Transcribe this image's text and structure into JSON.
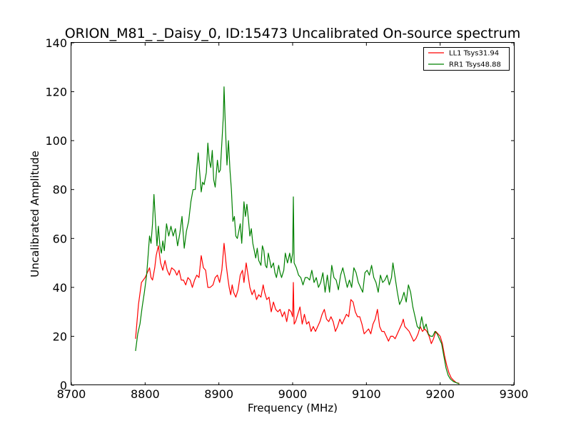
{
  "chart_data": {
    "type": "line",
    "title": "ORION_M81_-_Daisy_0, ID:15473 Uncalibrated On-source spectrum",
    "xlabel": "Frequency (MHz)",
    "ylabel": "Uncalibrated Amplitude",
    "xlim": [
      8700,
      9300
    ],
    "ylim": [
      0,
      140
    ],
    "xticks": [
      8700,
      8800,
      8900,
      9000,
      9100,
      9200,
      9300
    ],
    "yticks": [
      0,
      20,
      40,
      60,
      80,
      100,
      120,
      140
    ],
    "xtick_labels": [
      "8700",
      "8800",
      "8900",
      "9000",
      "9100",
      "9200",
      "9300"
    ],
    "ytick_labels": [
      "0",
      "20",
      "40",
      "60",
      "80",
      "100",
      "120",
      "140"
    ],
    "grid": false,
    "legend_position": "top-right",
    "series": [
      {
        "name": "LL1 Tsys31.94",
        "color": "#ff0000",
        "points": [
          [
            8787,
            19
          ],
          [
            8791,
            33
          ],
          [
            8795,
            42
          ],
          [
            8800,
            44
          ],
          [
            8803,
            46
          ],
          [
            8806,
            48
          ],
          [
            8808,
            44
          ],
          [
            8810,
            43
          ],
          [
            8813,
            48
          ],
          [
            8815,
            53
          ],
          [
            8818,
            57
          ],
          [
            8821,
            50
          ],
          [
            8824,
            47
          ],
          [
            8827,
            51
          ],
          [
            8830,
            47
          ],
          [
            8833,
            45
          ],
          [
            8836,
            48
          ],
          [
            8840,
            47
          ],
          [
            8843,
            45
          ],
          [
            8846,
            47
          ],
          [
            8849,
            43
          ],
          [
            8852,
            43
          ],
          [
            8855,
            41
          ],
          [
            8858,
            44
          ],
          [
            8861,
            43
          ],
          [
            8864,
            40
          ],
          [
            8867,
            43
          ],
          [
            8870,
            45
          ],
          [
            8873,
            44
          ],
          [
            8876,
            53
          ],
          [
            8879,
            48
          ],
          [
            8882,
            47
          ],
          [
            8885,
            40
          ],
          [
            8888,
            40
          ],
          [
            8892,
            41
          ],
          [
            8895,
            44
          ],
          [
            8898,
            45
          ],
          [
            8901,
            42
          ],
          [
            8904,
            47
          ],
          [
            8907,
            58
          ],
          [
            8910,
            49
          ],
          [
            8912,
            44
          ],
          [
            8914,
            40
          ],
          [
            8916,
            37
          ],
          [
            8918,
            41
          ],
          [
            8920,
            38
          ],
          [
            8923,
            36
          ],
          [
            8926,
            39
          ],
          [
            8929,
            45
          ],
          [
            8932,
            47
          ],
          [
            8934,
            42
          ],
          [
            8937,
            50
          ],
          [
            8939,
            46
          ],
          [
            8942,
            40
          ],
          [
            8945,
            37
          ],
          [
            8948,
            39
          ],
          [
            8951,
            35
          ],
          [
            8954,
            37
          ],
          [
            8957,
            36
          ],
          [
            8960,
            41
          ],
          [
            8962,
            38
          ],
          [
            8965,
            35
          ],
          [
            8968,
            36
          ],
          [
            8971,
            30
          ],
          [
            8974,
            34
          ],
          [
            8977,
            31
          ],
          [
            8980,
            30
          ],
          [
            8983,
            31
          ],
          [
            8986,
            28
          ],
          [
            8989,
            30
          ],
          [
            8992,
            26
          ],
          [
            8995,
            31
          ],
          [
            8998,
            30
          ],
          [
            9000,
            28
          ],
          [
            9001,
            42
          ],
          [
            9002,
            25
          ],
          [
            9004,
            26
          ],
          [
            9007,
            29
          ],
          [
            9010,
            32
          ],
          [
            9013,
            25
          ],
          [
            9016,
            29
          ],
          [
            9019,
            25
          ],
          [
            9022,
            26
          ],
          [
            9025,
            22
          ],
          [
            9028,
            24
          ],
          [
            9031,
            22
          ],
          [
            9034,
            24
          ],
          [
            9037,
            26
          ],
          [
            9040,
            29
          ],
          [
            9043,
            31
          ],
          [
            9046,
            27
          ],
          [
            9049,
            26
          ],
          [
            9052,
            28
          ],
          [
            9055,
            26
          ],
          [
            9058,
            22
          ],
          [
            9061,
            24
          ],
          [
            9064,
            27
          ],
          [
            9067,
            25
          ],
          [
            9070,
            27
          ],
          [
            9073,
            29
          ],
          [
            9076,
            28
          ],
          [
            9079,
            35
          ],
          [
            9082,
            34
          ],
          [
            9085,
            30
          ],
          [
            9088,
            28
          ],
          [
            9091,
            28
          ],
          [
            9094,
            25
          ],
          [
            9097,
            21
          ],
          [
            9100,
            22
          ],
          [
            9103,
            23
          ],
          [
            9106,
            21
          ],
          [
            9109,
            25
          ],
          [
            9112,
            27
          ],
          [
            9115,
            31
          ],
          [
            9118,
            24
          ],
          [
            9121,
            22
          ],
          [
            9124,
            22
          ],
          [
            9127,
            20
          ],
          [
            9130,
            18
          ],
          [
            9133,
            20
          ],
          [
            9136,
            20
          ],
          [
            9139,
            19
          ],
          [
            9142,
            21
          ],
          [
            9145,
            23
          ],
          [
            9148,
            25
          ],
          [
            9150,
            27
          ],
          [
            9152,
            24
          ],
          [
            9155,
            23
          ],
          [
            9158,
            22
          ],
          [
            9161,
            20
          ],
          [
            9164,
            18
          ],
          [
            9167,
            19
          ],
          [
            9170,
            21
          ],
          [
            9173,
            24
          ],
          [
            9176,
            22
          ],
          [
            9179,
            23
          ],
          [
            9182,
            22
          ],
          [
            9185,
            20
          ],
          [
            9188,
            17
          ],
          [
            9191,
            19
          ],
          [
            9194,
            22
          ],
          [
            9197,
            21
          ],
          [
            9200,
            20
          ],
          [
            9203,
            17
          ],
          [
            9206,
            12
          ],
          [
            9209,
            8
          ],
          [
            9212,
            5
          ],
          [
            9215,
            3
          ],
          [
            9218,
            2
          ],
          [
            9222,
            1
          ],
          [
            9226,
            0.8
          ]
        ]
      },
      {
        "name": "RR1 Tsys48.88",
        "color": "#008000",
        "points": [
          [
            8787,
            14
          ],
          [
            8790,
            21
          ],
          [
            8793,
            25
          ],
          [
            8796,
            32
          ],
          [
            8799,
            38
          ],
          [
            8802,
            45
          ],
          [
            8804,
            53
          ],
          [
            8806,
            61
          ],
          [
            8808,
            58
          ],
          [
            8810,
            66
          ],
          [
            8812,
            78
          ],
          [
            8814,
            67
          ],
          [
            8816,
            57
          ],
          [
            8818,
            65
          ],
          [
            8820,
            57
          ],
          [
            8822,
            54
          ],
          [
            8824,
            59
          ],
          [
            8826,
            55
          ],
          [
            8829,
            66
          ],
          [
            8832,
            61
          ],
          [
            8835,
            65
          ],
          [
            8838,
            61
          ],
          [
            8841,
            64
          ],
          [
            8844,
            57
          ],
          [
            8847,
            62
          ],
          [
            8850,
            69
          ],
          [
            8853,
            56
          ],
          [
            8856,
            63
          ],
          [
            8859,
            67
          ],
          [
            8862,
            75
          ],
          [
            8865,
            80
          ],
          [
            8868,
            80
          ],
          [
            8870,
            88
          ],
          [
            8872,
            95
          ],
          [
            8874,
            87
          ],
          [
            8876,
            79
          ],
          [
            8878,
            83
          ],
          [
            8880,
            82
          ],
          [
            8883,
            87
          ],
          [
            8885,
            99
          ],
          [
            8887,
            92
          ],
          [
            8889,
            89
          ],
          [
            8891,
            96
          ],
          [
            8893,
            84
          ],
          [
            8895,
            81
          ],
          [
            8898,
            92
          ],
          [
            8900,
            87
          ],
          [
            8902,
            88
          ],
          [
            8904,
            99
          ],
          [
            8906,
            110
          ],
          [
            8907,
            122
          ],
          [
            8909,
            104
          ],
          [
            8911,
            90
          ],
          [
            8913,
            100
          ],
          [
            8915,
            88
          ],
          [
            8917,
            80
          ],
          [
            8919,
            67
          ],
          [
            8921,
            69
          ],
          [
            8923,
            61
          ],
          [
            8925,
            60
          ],
          [
            8927,
            63
          ],
          [
            8929,
            66
          ],
          [
            8931,
            58
          ],
          [
            8934,
            75
          ],
          [
            8936,
            69
          ],
          [
            8938,
            74
          ],
          [
            8940,
            68
          ],
          [
            8942,
            61
          ],
          [
            8944,
            64
          ],
          [
            8946,
            58
          ],
          [
            8948,
            55
          ],
          [
            8950,
            52
          ],
          [
            8952,
            56
          ],
          [
            8954,
            51
          ],
          [
            8957,
            49
          ],
          [
            8959,
            57
          ],
          [
            8961,
            55
          ],
          [
            8963,
            49
          ],
          [
            8965,
            48
          ],
          [
            8967,
            54
          ],
          [
            8969,
            51
          ],
          [
            8971,
            48
          ],
          [
            8974,
            50
          ],
          [
            8976,
            46
          ],
          [
            8978,
            44
          ],
          [
            8981,
            49
          ],
          [
            8983,
            46
          ],
          [
            8985,
            44
          ],
          [
            8988,
            47
          ],
          [
            8990,
            54
          ],
          [
            8993,
            50
          ],
          [
            8996,
            54
          ],
          [
            8998,
            50
          ],
          [
            9000,
            54
          ],
          [
            9001,
            77
          ],
          [
            9002,
            50
          ],
          [
            9005,
            48
          ],
          [
            9008,
            45
          ],
          [
            9011,
            44
          ],
          [
            9014,
            41
          ],
          [
            9017,
            44
          ],
          [
            9020,
            44
          ],
          [
            9023,
            43
          ],
          [
            9026,
            47
          ],
          [
            9029,
            42
          ],
          [
            9032,
            44
          ],
          [
            9035,
            40
          ],
          [
            9038,
            42
          ],
          [
            9041,
            46
          ],
          [
            9044,
            38
          ],
          [
            9047,
            45
          ],
          [
            9050,
            38
          ],
          [
            9053,
            49
          ],
          [
            9056,
            44
          ],
          [
            9059,
            43
          ],
          [
            9062,
            39
          ],
          [
            9065,
            45
          ],
          [
            9068,
            48
          ],
          [
            9071,
            44
          ],
          [
            9074,
            40
          ],
          [
            9077,
            43
          ],
          [
            9080,
            40
          ],
          [
            9083,
            48
          ],
          [
            9086,
            46
          ],
          [
            9089,
            42
          ],
          [
            9092,
            40
          ],
          [
            9095,
            38
          ],
          [
            9098,
            46
          ],
          [
            9101,
            47
          ],
          [
            9104,
            45
          ],
          [
            9107,
            49
          ],
          [
            9110,
            44
          ],
          [
            9113,
            42
          ],
          [
            9116,
            38
          ],
          [
            9119,
            45
          ],
          [
            9122,
            42
          ],
          [
            9125,
            43
          ],
          [
            9128,
            45
          ],
          [
            9131,
            41
          ],
          [
            9134,
            44
          ],
          [
            9136,
            50
          ],
          [
            9139,
            44
          ],
          [
            9142,
            38
          ],
          [
            9145,
            33
          ],
          [
            9148,
            35
          ],
          [
            9151,
            38
          ],
          [
            9154,
            34
          ],
          [
            9157,
            41
          ],
          [
            9160,
            38
          ],
          [
            9163,
            32
          ],
          [
            9166,
            28
          ],
          [
            9169,
            24
          ],
          [
            9172,
            23
          ],
          [
            9175,
            28
          ],
          [
            9178,
            23
          ],
          [
            9181,
            25
          ],
          [
            9184,
            21
          ],
          [
            9187,
            20
          ],
          [
            9190,
            20
          ],
          [
            9193,
            22
          ],
          [
            9196,
            21
          ],
          [
            9199,
            19
          ],
          [
            9202,
            17
          ],
          [
            9205,
            12
          ],
          [
            9208,
            7
          ],
          [
            9211,
            4
          ],
          [
            9214,
            2.5
          ],
          [
            9218,
            1.5
          ],
          [
            9222,
            1
          ],
          [
            9226,
            0.5
          ]
        ]
      }
    ]
  }
}
